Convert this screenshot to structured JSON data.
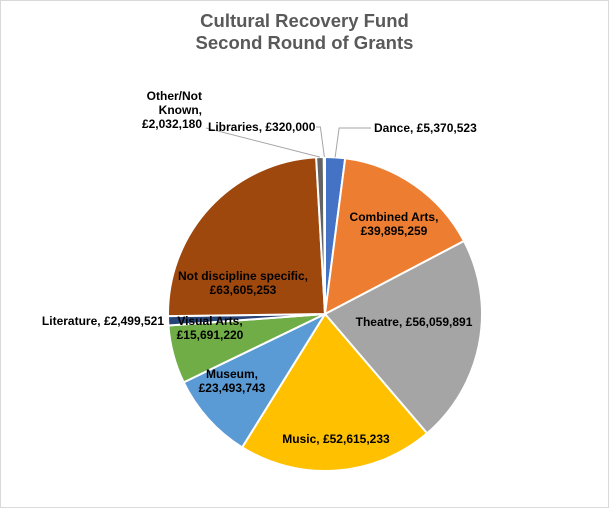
{
  "chart_data": {
    "type": "pie",
    "title": [
      "Cultural Recovery Fund",
      "Second Round of Grants"
    ],
    "legend": "none",
    "slices": [
      {
        "name": "Dance",
        "value": 5370523,
        "label": [
          "Dance, £5,370,523"
        ],
        "color": "#4472C4"
      },
      {
        "name": "Combined Arts",
        "value": 39895259,
        "label": [
          "Combined Arts,",
          "£39,895,259"
        ],
        "color": "#ED7D31"
      },
      {
        "name": "Theatre",
        "value": 56059891,
        "label": [
          "Theatre, £56,059,891"
        ],
        "color": "#A5A5A5"
      },
      {
        "name": "Music",
        "value": 52615233,
        "label": [
          "Music, £52,615,233"
        ],
        "color": "#FFC000"
      },
      {
        "name": "Museum",
        "value": 23493743,
        "label": [
          "Museum,",
          "£23,493,743"
        ],
        "color": "#5B9BD5"
      },
      {
        "name": "Visual Arts",
        "value": 15691220,
        "label": [
          "Visual Arts,",
          "£15,691,220"
        ],
        "color": "#70AD47"
      },
      {
        "name": "Literature",
        "value": 2499521,
        "label": [
          "Literature, £2,499,521"
        ],
        "color": "#264478"
      },
      {
        "name": "Not discipline specific",
        "value": 63605253,
        "label": [
          "Not discipline specific,",
          "£63,605,253"
        ],
        "color": "#9E480E"
      },
      {
        "name": "Other/Not Known",
        "value": 2032180,
        "label": [
          "Other/Not",
          "Known,",
          "£2,032,180"
        ],
        "color": "#636363"
      },
      {
        "name": "Libraries",
        "value": 320000,
        "label": [
          "Libraries, £320,000"
        ],
        "color": "#997300"
      }
    ]
  }
}
